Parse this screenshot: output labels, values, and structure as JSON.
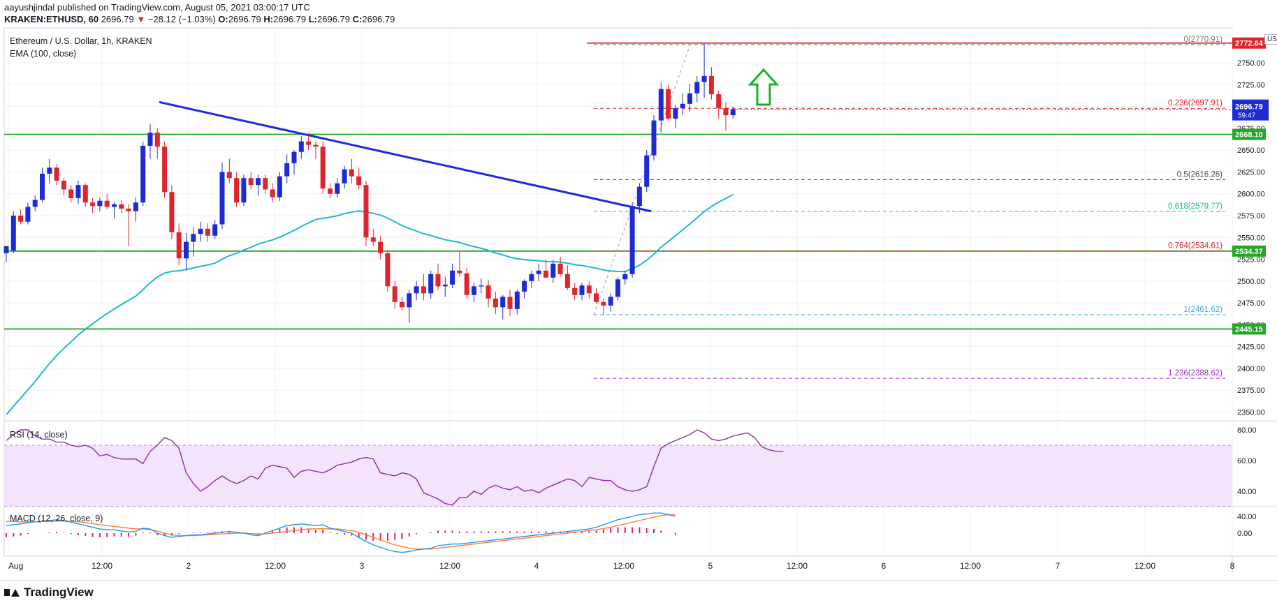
{
  "header": {
    "line1": "aayushjindal published on TradingView.com, August 05, 2021 03:00:17 UTC",
    "symbol": "KRAKEN:ETHUSD, 60",
    "last": "2696.79",
    "change": "−28.12 (−1.03%)",
    "open_label": "O:",
    "open": "2696.79",
    "high_label": "H:",
    "high": "2696.79",
    "low_label": "L:",
    "low": "2696.79",
    "close_label": "C:",
    "close": "2696.79"
  },
  "legend": {
    "title": "Ethereum / U.S. Dollar, 1h, KRAKEN",
    "ema": "EMA (100, close)",
    "rsi": "RSI (14, close)",
    "macd": "MACD (12, 26, close, 9)"
  },
  "currency": "USD",
  "brand": "TradingView",
  "colors": {
    "up": "#1c2bd6",
    "down": "#e0242e",
    "ema": "#1fb8cc",
    "support": "#26a626",
    "trend": "#1c2bd6",
    "arrow": "#1fae2c",
    "rsi": "#8e2ea0",
    "rsi_band": "#f3e3fb",
    "macd_line": "#2196f3",
    "signal_line": "#ff7f2a",
    "hist": "#e91e63"
  },
  "chart_data": [
    {
      "type": "candlestick",
      "title": "Ethereum / U.S. Dollar, 1h, KRAKEN",
      "xlabel": "",
      "ylabel": "",
      "ylim": [
        2340,
        2790
      ],
      "x_ticks": [
        "Aug",
        "12:00",
        "2",
        "12:00",
        "3",
        "12:00",
        "4",
        "12:00",
        "5",
        "12:00",
        "6",
        "12:00",
        "7",
        "12:00",
        "8"
      ],
      "y_ticks": [
        "2750.00",
        "2725.00",
        "2700.00",
        "2675.00",
        "2650.00",
        "2625.00",
        "2600.00",
        "2575.00",
        "2550.00",
        "2525.00",
        "2500.00",
        "2475.00",
        "2450.00",
        "2425.00",
        "2400.00",
        "2375.00",
        "2350.00"
      ],
      "candles_hourly_ohlc": [
        [
          2532,
          2540,
          2522,
          2540
        ],
        [
          2535,
          2580,
          2532,
          2575
        ],
        [
          2575,
          2582,
          2565,
          2568
        ],
        [
          2568,
          2590,
          2565,
          2585
        ],
        [
          2585,
          2598,
          2580,
          2593
        ],
        [
          2593,
          2630,
          2590,
          2623
        ],
        [
          2623,
          2640,
          2612,
          2630
        ],
        [
          2630,
          2634,
          2610,
          2615
        ],
        [
          2615,
          2618,
          2598,
          2605
        ],
        [
          2605,
          2610,
          2590,
          2595
        ],
        [
          2595,
          2615,
          2588,
          2610
        ],
        [
          2610,
          2612,
          2585,
          2590
        ],
        [
          2590,
          2595,
          2578,
          2586
        ],
        [
          2586,
          2596,
          2580,
          2592
        ],
        [
          2592,
          2600,
          2582,
          2585
        ],
        [
          2585,
          2590,
          2572,
          2588
        ],
        [
          2588,
          2592,
          2578,
          2583
        ],
        [
          2583,
          2588,
          2540,
          2580
        ],
        [
          2580,
          2596,
          2568,
          2590
        ],
        [
          2590,
          2660,
          2586,
          2655
        ],
        [
          2655,
          2680,
          2640,
          2670
        ],
        [
          2670,
          2675,
          2640,
          2654
        ],
        [
          2654,
          2660,
          2595,
          2602
        ],
        [
          2602,
          2610,
          2548,
          2556
        ],
        [
          2556,
          2566,
          2518,
          2526
        ],
        [
          2526,
          2555,
          2512,
          2545
        ],
        [
          2545,
          2562,
          2528,
          2554
        ],
        [
          2554,
          2568,
          2545,
          2560
        ],
        [
          2560,
          2566,
          2545,
          2552
        ],
        [
          2552,
          2570,
          2548,
          2565
        ],
        [
          2565,
          2636,
          2560,
          2625
        ],
        [
          2625,
          2640,
          2612,
          2618
        ],
        [
          2618,
          2625,
          2585,
          2590
        ],
        [
          2590,
          2622,
          2586,
          2618
        ],
        [
          2618,
          2625,
          2605,
          2610
        ],
        [
          2610,
          2622,
          2598,
          2618
        ],
        [
          2618,
          2622,
          2600,
          2605
        ],
        [
          2605,
          2612,
          2590,
          2596
        ],
        [
          2596,
          2625,
          2592,
          2620
        ],
        [
          2620,
          2645,
          2612,
          2635
        ],
        [
          2635,
          2650,
          2622,
          2648
        ],
        [
          2648,
          2666,
          2640,
          2660
        ],
        [
          2660,
          2670,
          2650,
          2656
        ],
        [
          2656,
          2660,
          2640,
          2654
        ],
        [
          2654,
          2660,
          2600,
          2606
        ],
        [
          2606,
          2612,
          2595,
          2600
        ],
        [
          2600,
          2618,
          2595,
          2612
        ],
        [
          2612,
          2632,
          2606,
          2628
        ],
        [
          2628,
          2640,
          2612,
          2620
        ],
        [
          2620,
          2630,
          2605,
          2610
        ],
        [
          2610,
          2615,
          2540,
          2550
        ],
        [
          2550,
          2560,
          2540,
          2545
        ],
        [
          2545,
          2552,
          2525,
          2532
        ],
        [
          2532,
          2535,
          2488,
          2494
        ],
        [
          2494,
          2500,
          2468,
          2476
        ],
        [
          2476,
          2482,
          2466,
          2470
        ],
        [
          2470,
          2490,
          2452,
          2486
        ],
        [
          2486,
          2500,
          2478,
          2494
        ],
        [
          2494,
          2508,
          2478,
          2486
        ],
        [
          2486,
          2512,
          2480,
          2508
        ],
        [
          2508,
          2520,
          2490,
          2494
        ],
        [
          2494,
          2505,
          2482,
          2496
        ],
        [
          2496,
          2520,
          2492,
          2512
        ],
        [
          2512,
          2535,
          2505,
          2509
        ],
        [
          2509,
          2515,
          2480,
          2484
        ],
        [
          2484,
          2498,
          2476,
          2494
        ],
        [
          2494,
          2503,
          2486,
          2495
        ],
        [
          2495,
          2501,
          2470,
          2480
        ],
        [
          2480,
          2488,
          2462,
          2470
        ],
        [
          2470,
          2484,
          2456,
          2482
        ],
        [
          2482,
          2490,
          2460,
          2468
        ],
        [
          2468,
          2490,
          2462,
          2488
        ],
        [
          2488,
          2502,
          2480,
          2500
        ],
        [
          2500,
          2512,
          2492,
          2508
        ],
        [
          2508,
          2520,
          2500,
          2512
        ],
        [
          2512,
          2525,
          2505,
          2504
        ],
        [
          2504,
          2524,
          2498,
          2520
        ],
        [
          2520,
          2528,
          2505,
          2508
        ],
        [
          2508,
          2518,
          2490,
          2492
        ],
        [
          2492,
          2498,
          2478,
          2484
        ],
        [
          2484,
          2498,
          2478,
          2495
        ],
        [
          2495,
          2500,
          2480,
          2486
        ],
        [
          2486,
          2492,
          2474,
          2476
        ],
        [
          2476,
          2480,
          2462,
          2472
        ],
        [
          2472,
          2486,
          2465,
          2482
        ],
        [
          2482,
          2505,
          2478,
          2502
        ],
        [
          2502,
          2512,
          2496,
          2508
        ],
        [
          2508,
          2590,
          2504,
          2586
        ],
        [
          2586,
          2612,
          2578,
          2608
        ],
        [
          2608,
          2650,
          2602,
          2644
        ],
        [
          2644,
          2690,
          2638,
          2684
        ],
        [
          2684,
          2728,
          2670,
          2720
        ],
        [
          2720,
          2725,
          2684,
          2686
        ],
        [
          2686,
          2702,
          2675,
          2698
        ],
        [
          2698,
          2715,
          2690,
          2703
        ],
        [
          2703,
          2726,
          2694,
          2715
        ],
        [
          2715,
          2735,
          2705,
          2728
        ],
        [
          2728,
          2772,
          2710,
          2735
        ],
        [
          2735,
          2745,
          2708,
          2714
        ],
        [
          2714,
          2718,
          2686,
          2698
        ],
        [
          2698,
          2705,
          2672,
          2690
        ],
        [
          2690,
          2700,
          2686,
          2697
        ]
      ]
    },
    {
      "type": "line",
      "series": [
        {
          "name": "RSI (14, close)",
          "y_range": [
            30,
            85
          ],
          "values": [
            73,
            77,
            80,
            80,
            76,
            74,
            74,
            72,
            72,
            70,
            69,
            70,
            68,
            63,
            64,
            62,
            61,
            61,
            61,
            58,
            66,
            70,
            75,
            73,
            68,
            52,
            45,
            40,
            43,
            47,
            50,
            47,
            45,
            47,
            50,
            48,
            55,
            57,
            56,
            55,
            49,
            53,
            54,
            53,
            52,
            54,
            57,
            58,
            59,
            61,
            62,
            61,
            52,
            51,
            50,
            52,
            51,
            48,
            39,
            37,
            35,
            32,
            31,
            36,
            36,
            40,
            38,
            42,
            44,
            42,
            41,
            43,
            40,
            41,
            39,
            42,
            44,
            46,
            48,
            47,
            43,
            49,
            48,
            47,
            47,
            43,
            41,
            40,
            41,
            43,
            56,
            68,
            71,
            73,
            75,
            77,
            80,
            78,
            74,
            73,
            74,
            76,
            77,
            78,
            75,
            69,
            67,
            66,
            66
          ]
        }
      ],
      "y_ticks": [
        "80.00",
        "60.00",
        "40.00"
      ],
      "levels": [
        70,
        30
      ]
    },
    {
      "type": "line",
      "series": [
        {
          "name": "MACD",
          "values": [
            18,
            20,
            22,
            25,
            27,
            28,
            30,
            32,
            30,
            26,
            22,
            18,
            14,
            10,
            8,
            8,
            5,
            3,
            4,
            12,
            10,
            0,
            -6,
            -10,
            -8,
            -6,
            -4,
            -4,
            -2,
            0,
            2,
            4,
            2,
            0,
            -4,
            -6,
            0,
            6,
            12,
            18,
            20,
            22,
            20,
            18,
            20,
            12,
            8,
            4,
            0,
            -10,
            -20,
            -28,
            -34,
            -40,
            -44,
            -46,
            -44,
            -40,
            -38,
            -36,
            -30,
            -28,
            -26,
            -26,
            -24,
            -22,
            -20,
            -18,
            -16,
            -14,
            -12,
            -10,
            -8,
            -6,
            -4,
            -2,
            0,
            2,
            4,
            6,
            8,
            10,
            14,
            20,
            26,
            32,
            36,
            40,
            44,
            46,
            48,
            48,
            44,
            40
          ]
        },
        {
          "name": "Signal",
          "values": [
            28,
            28,
            27,
            27,
            27,
            28,
            28,
            29,
            29,
            28,
            27,
            25,
            23,
            20,
            18,
            16,
            14,
            12,
            10,
            10,
            8,
            5,
            0,
            -4,
            -6,
            -6,
            -6,
            -5,
            -4,
            -3,
            -2,
            -1,
            0,
            0,
            -1,
            -2,
            -2,
            0,
            2,
            4,
            6,
            8,
            10,
            10,
            11,
            10,
            10,
            8,
            6,
            2,
            -4,
            -10,
            -16,
            -22,
            -28,
            -32,
            -36,
            -38,
            -38,
            -38,
            -36,
            -34,
            -32,
            -30,
            -28,
            -26,
            -24,
            -22,
            -20,
            -18,
            -16,
            -14,
            -12,
            -10,
            -8,
            -6,
            -4,
            -2,
            0,
            2,
            4,
            6,
            8,
            11,
            14,
            18,
            22,
            26,
            30,
            34,
            38,
            42,
            44,
            44
          ]
        },
        {
          "name": "Histogram",
          "values": [
            -10,
            -8,
            -6,
            -2,
            0,
            0,
            2,
            3,
            1,
            -2,
            -5,
            -7,
            -9,
            -10,
            -10,
            -8,
            -9,
            -9,
            -6,
            2,
            2,
            -5,
            -6,
            -6,
            -2,
            0,
            2,
            1,
            2,
            3,
            4,
            5,
            2,
            0,
            -3,
            -4,
            2,
            6,
            10,
            14,
            14,
            14,
            10,
            8,
            9,
            2,
            -2,
            -4,
            -6,
            -12,
            -16,
            -18,
            -18,
            -18,
            -16,
            -14,
            -8,
            -2,
            0,
            2,
            6,
            6,
            6,
            4,
            4,
            4,
            4,
            4,
            4,
            4,
            4,
            4,
            4,
            4,
            4,
            4,
            4,
            4,
            4,
            4,
            4,
            4,
            6,
            9,
            12,
            14,
            14,
            14,
            14,
            12,
            10,
            6,
            0,
            -4
          ]
        }
      ],
      "y_ticks": [
        "40.00",
        "0.00"
      ]
    }
  ],
  "price_labels": {
    "top": "2772.64",
    "current": "2696.79",
    "countdown": "59:47",
    "s1": "2668.10",
    "s2": "2534.37",
    "s3": "2445.15"
  },
  "fib_labels": [
    {
      "text": "0(2770.91)",
      "price": 2770.91,
      "color": "#7a7a7a"
    },
    {
      "text": "0.236(2697.91)",
      "price": 2697.91,
      "color": "#e0242e"
    },
    {
      "text": "0.5(2616.26)",
      "price": 2616.26,
      "color": "#4a4a4a"
    },
    {
      "text": "0.618(2579.77)",
      "price": 2579.77,
      "color": "#1eb89a"
    },
    {
      "text": "0.764(2534.61)",
      "price": 2534.61,
      "color": "#e0242e"
    },
    {
      "text": "1(2461.62)",
      "price": 2461.62,
      "color": "#45a8d8"
    },
    {
      "text": "1.236(2388.62)",
      "price": 2388.62,
      "color": "#a030c0"
    }
  ]
}
